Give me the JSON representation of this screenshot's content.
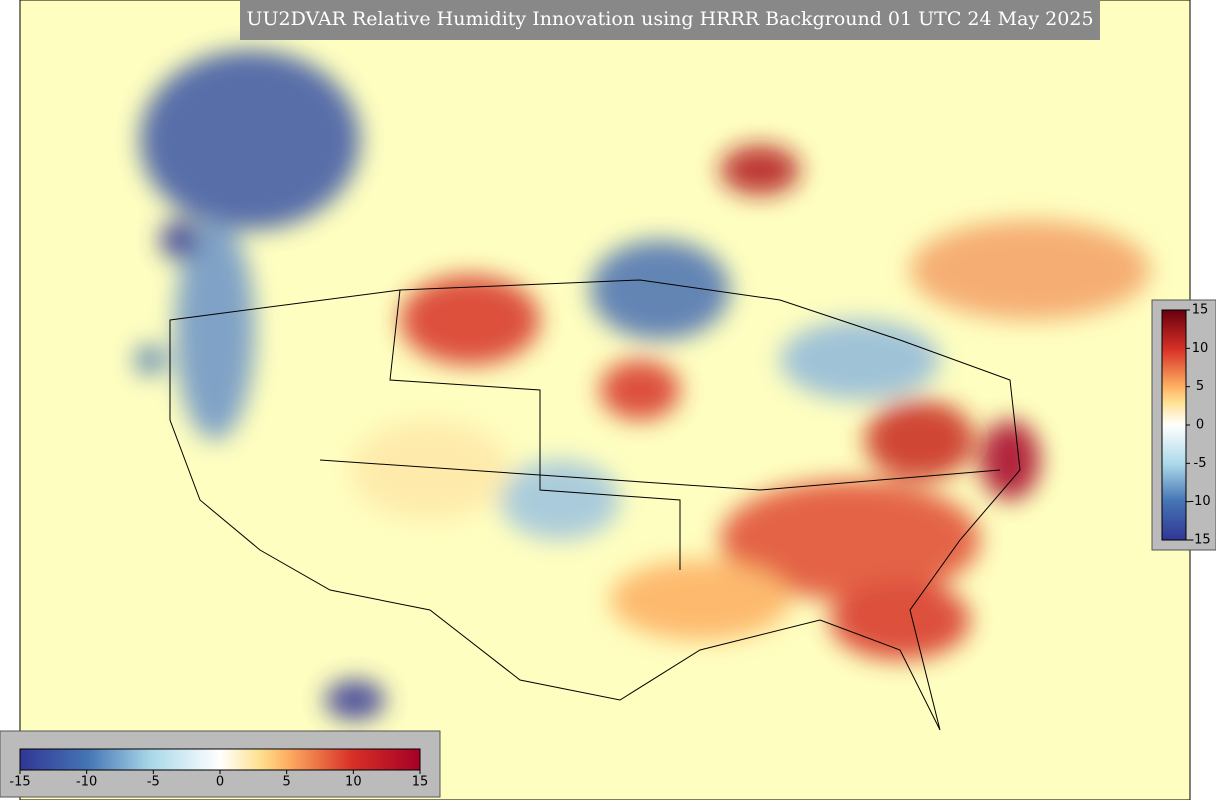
{
  "title": "UU2DVAR Relative Humidity Innovation using HRRR Background 01 UTC 24 May 2025",
  "vertical_colorbar": {
    "ticks": [
      15,
      10,
      5,
      0,
      -5,
      -10,
      -15
    ]
  },
  "horizontal_colorbar": {
    "ticks": [
      -15,
      -10,
      -5,
      0,
      5,
      10,
      15
    ]
  }
}
